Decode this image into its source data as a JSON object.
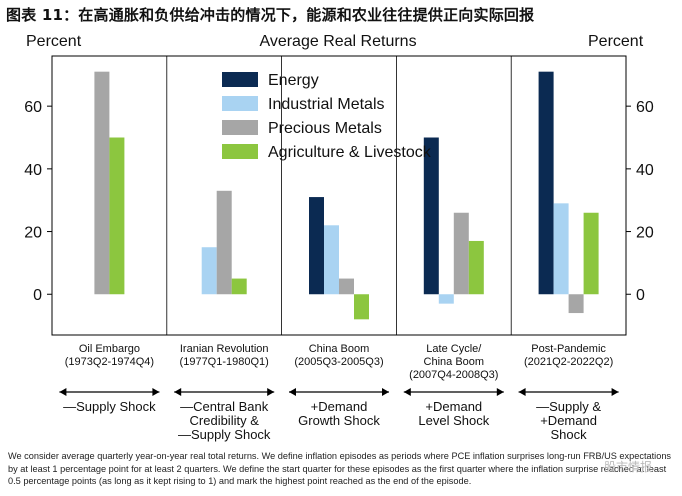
{
  "title": "图表 11：在高通胀和负供给冲击的情况下，能源和农业往往提供正向实际回报",
  "chart_data": {
    "type": "bar",
    "title": "Average Real Returns",
    "ylabel_left": "Percent",
    "ylabel_right": "Percent",
    "ylim": [
      -13,
      76
    ],
    "yticks": [
      0,
      20,
      40,
      60
    ],
    "legend_position": "top-center",
    "categories": [
      {
        "label_lines": [
          "Oil Embargo",
          "(1973Q2-1974Q4)"
        ],
        "shock_lines": [
          "—Supply Shock"
        ]
      },
      {
        "label_lines": [
          "Iranian Revolution",
          "(1977Q1-1980Q1)"
        ],
        "shock_lines": [
          "—Central Bank",
          "Credibility &",
          "—Supply Shock"
        ]
      },
      {
        "label_lines": [
          "China Boom",
          "(2005Q3-2005Q3)"
        ],
        "shock_lines": [
          "+Demand",
          "Growth Shock"
        ]
      },
      {
        "label_lines": [
          "Late Cycle/",
          "China Boom",
          "(2007Q4-2008Q3)"
        ],
        "shock_lines": [
          "+Demand",
          "Level Shock"
        ]
      },
      {
        "label_lines": [
          "Post-Pandemic",
          "(2021Q2-2022Q2)"
        ],
        "shock_lines": [
          "—Supply &",
          "+Demand",
          "Shock"
        ]
      }
    ],
    "series": [
      {
        "name": "Energy",
        "color": "#0b2a52",
        "values": [
          null,
          null,
          31,
          50,
          71
        ]
      },
      {
        "name": "Industrial Metals",
        "color": "#a9d3f2",
        "values": [
          null,
          15,
          22,
          -3,
          29
        ]
      },
      {
        "name": "Precious Metals",
        "color": "#a6a6a6",
        "values": [
          71,
          33,
          5,
          26,
          -6
        ]
      },
      {
        "name": "Agriculture & Livestock",
        "color": "#8cc63f",
        "values": [
          50,
          5,
          -8,
          17,
          26
        ]
      }
    ]
  },
  "footnote": "We consider average quarterly year-on-year real total returns. We define inflation episodes as periods where PCE inflation surprises long-run FRB/US expectations by at least 1 percentage point for at least 2 quarters. We define the start quarter for these episodes as the first quarter where the inflation surprise reached at least 0.5 percentage points (as long as it kept rising to 1) and mark the highest point reached as the end of the episode.",
  "watermark": "股市情报"
}
